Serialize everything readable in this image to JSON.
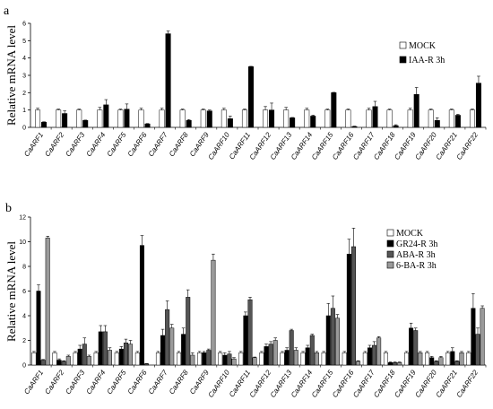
{
  "chart_data": [
    {
      "type": "bar",
      "panel_label": "a",
      "ylabel": "Relative mRNA level",
      "ylim": [
        0,
        6
      ],
      "yticks": [
        "0",
        "1",
        "2",
        "3",
        "4",
        "5",
        "6"
      ],
      "grid": false,
      "legend_position": "right",
      "categories": [
        "CaARF1",
        "CaARF2",
        "CaARF3",
        "CaARF4",
        "CaARF5",
        "CaARF6",
        "CaARF7",
        "CaARF8",
        "CaARF9",
        "CaARF10",
        "CaARF11",
        "CaARF12",
        "CaARF13",
        "CaARF14",
        "CaARF15",
        "CaARF16",
        "CaARF17",
        "CaARF18",
        "CaARF19",
        "CaARF20",
        "CaARF21",
        "CaARF22"
      ],
      "series": [
        {
          "name": "MOCK",
          "color": "#ffffff",
          "values": [
            1,
            1,
            1,
            1,
            1,
            1,
            1,
            1,
            1,
            1,
            1,
            1,
            1,
            1,
            1,
            1,
            1,
            1,
            1,
            1,
            1,
            1
          ],
          "errors": [
            0.1,
            0.05,
            0.05,
            0.15,
            0.05,
            0.1,
            0.1,
            0.05,
            0.05,
            0.1,
            0.05,
            0.2,
            0.15,
            0.1,
            0.05,
            0.05,
            0.1,
            0.05,
            0.1,
            0.05,
            0.05,
            0.05
          ]
        },
        {
          "name": "IAA-R 3h",
          "color": "#000000",
          "values": [
            0.3,
            0.8,
            0.4,
            1.3,
            1.05,
            0.2,
            5.4,
            0.4,
            0.95,
            0.5,
            3.5,
            1.0,
            0.55,
            0.65,
            2.0,
            0.05,
            1.2,
            0.1,
            1.9,
            0.4,
            0.7,
            2.55
          ],
          "errors": [
            0.02,
            0.15,
            0.02,
            0.3,
            0.3,
            0.02,
            0.15,
            0.05,
            0.05,
            0.15,
            0.02,
            0.4,
            0.02,
            0.05,
            0.02,
            0.02,
            0.3,
            0.05,
            0.4,
            0.15,
            0.05,
            0.4
          ]
        }
      ]
    },
    {
      "type": "bar",
      "panel_label": "b",
      "ylabel": "Relative mRNA level",
      "ylim": [
        0,
        12
      ],
      "yticks": [
        "0",
        "2",
        "4",
        "6",
        "8",
        "10",
        "12"
      ],
      "grid": false,
      "legend_position": "right",
      "categories": [
        "CaARF1",
        "CaARF2",
        "CaARF3",
        "CaARF4",
        "CaARF5",
        "CaARF6",
        "CaARF7",
        "CaARF8",
        "CaARF9",
        "CaARF10",
        "CaARF11",
        "CaARF12",
        "CaARF13",
        "CaARF14",
        "CaARF15",
        "CaARF16",
        "CaARF17",
        "CaARF18",
        "CaARF19",
        "CaARF20",
        "CaARF21",
        "CaARF22"
      ],
      "series": [
        {
          "name": "MOCK",
          "color": "#ffffff",
          "values": [
            1,
            1,
            1,
            1,
            1,
            1,
            1,
            1,
            1,
            1,
            1,
            1,
            1,
            1,
            1,
            1,
            1,
            1,
            1,
            1,
            1,
            1
          ],
          "errors": [
            0.1,
            0.1,
            0.1,
            0.1,
            0.1,
            0.1,
            0.1,
            0.1,
            0.1,
            0.1,
            0.1,
            0.1,
            0.1,
            0.1,
            0.1,
            0.1,
            0.1,
            0.1,
            0.1,
            0.1,
            0.1,
            0.1
          ]
        },
        {
          "name": "GR24-R 3h",
          "color": "#000000",
          "values": [
            6.0,
            0.4,
            1.3,
            2.7,
            1.3,
            9.7,
            2.4,
            2.5,
            1.0,
            0.8,
            4.0,
            1.5,
            1.2,
            1.4,
            4.0,
            9.0,
            1.4,
            0.2,
            3.0,
            0.6,
            1.1,
            4.6
          ],
          "errors": [
            0.5,
            0.1,
            0.3,
            0.5,
            0.2,
            0.8,
            0.5,
            0.5,
            0.1,
            0.2,
            0.3,
            0.2,
            0.2,
            0.2,
            1.0,
            1.2,
            0.2,
            0.05,
            0.4,
            0.1,
            0.3,
            1.2
          ]
        },
        {
          "name": "ABA-R 3h",
          "color": "#555555",
          "values": [
            0.4,
            0.3,
            1.7,
            2.7,
            1.8,
            0.1,
            4.5,
            5.5,
            1.2,
            0.9,
            5.3,
            1.7,
            2.8,
            2.4,
            4.6,
            9.6,
            1.6,
            0.2,
            2.8,
            0.3,
            0.3,
            2.5
          ],
          "errors": [
            0.05,
            0.05,
            0.5,
            0.5,
            0.3,
            0.02,
            0.7,
            0.6,
            0.1,
            0.2,
            0.2,
            0.2,
            0.1,
            0.1,
            1.0,
            1.5,
            0.3,
            0.05,
            0.2,
            0.05,
            0.05,
            0.5
          ]
        },
        {
          "name": "6-BA-R 3h",
          "color": "#9a9a9a",
          "values": [
            10.3,
            0.7,
            0.7,
            1.2,
            1.7,
            0.0,
            3.0,
            0.8,
            8.5,
            0.5,
            0.6,
            2.0,
            1.2,
            1.0,
            3.8,
            0.3,
            2.2,
            0.2,
            1.0,
            0.6,
            1.0,
            4.6
          ],
          "errors": [
            0.15,
            0.1,
            0.1,
            0.2,
            0.3,
            0.0,
            0.3,
            0.2,
            0.5,
            0.1,
            0.05,
            0.2,
            0.2,
            0.1,
            0.3,
            0.05,
            0.1,
            0.05,
            0.1,
            0.1,
            0.1,
            0.2
          ]
        }
      ]
    }
  ]
}
